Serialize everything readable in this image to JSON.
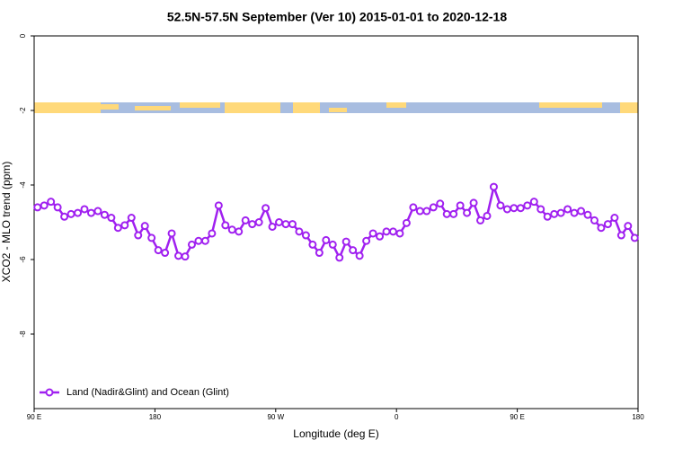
{
  "chart_data": {
    "type": "line",
    "title": "52.5N-57.5N September (Ver 10)   2015-01-01 to 2020-12-18",
    "xlabel": "Longitude (deg E)",
    "ylabel": "XCO2 - MLO trend (ppm)",
    "xlim": [
      90,
      540
    ],
    "xticks": [
      {
        "value": 90,
        "label": "90 E"
      },
      180,
      {
        "value": 270,
        "label": "90 W"
      },
      {
        "value": 360,
        "label": "0"
      },
      {
        "value": 450,
        "label": "90 E"
      },
      {
        "value": 540,
        "label": "180"
      }
    ],
    "ylim": [
      -10,
      0
    ],
    "yticks": [
      0,
      -2,
      -4,
      -6,
      -8
    ],
    "legend": "lower left",
    "x": [
      92.5,
      97.5,
      102.5,
      107.5,
      112.5,
      117.5,
      122.5,
      127.5,
      132.5,
      137.5,
      142.5,
      147.5,
      152.5,
      157.5,
      162.5,
      167.5,
      172.5,
      177.5,
      182.5,
      187.5,
      192.5,
      197.5,
      202.5,
      207.5,
      212.5,
      217.5,
      222.5,
      227.5,
      232.5,
      237.5,
      242.5,
      247.5,
      252.5,
      257.5,
      262.5,
      267.5,
      272.5,
      277.5,
      282.5,
      287.5,
      292.5,
      297.5,
      302.5,
      307.5,
      312.5,
      317.5,
      322.5,
      327.5,
      332.5,
      337.5,
      342.5,
      347.5,
      352.5,
      357.5,
      362.5,
      367.5,
      372.5,
      377.5,
      382.5,
      387.5,
      392.5,
      397.5,
      402.5,
      407.5,
      412.5,
      417.5,
      422.5,
      427.5,
      432.5,
      437.5,
      442.5,
      447.5,
      452.5,
      457.5,
      462.5,
      467.5,
      472.5,
      477.5,
      482.5,
      487.5,
      492.5,
      497.5,
      502.5,
      507.5,
      512.5,
      517.5,
      522.5,
      527.5,
      532.5,
      537.5
    ],
    "series": [
      {
        "name": "Land (Nadir&Glint) and Ocean (Glint)",
        "color": "#a020f0",
        "values": [
          -4.6,
          -4.55,
          -4.45,
          -4.6,
          -4.85,
          -4.78,
          -4.75,
          -4.65,
          -4.75,
          -4.7,
          -4.8,
          -4.88,
          -5.15,
          -5.08,
          -4.88,
          -5.35,
          -5.1,
          -5.42,
          -5.75,
          -5.82,
          -5.3,
          -5.9,
          -5.92,
          -5.6,
          -5.5,
          -5.5,
          -5.3,
          -4.55,
          -5.08,
          -5.2,
          -5.25,
          -4.95,
          -5.05,
          -5.0,
          -4.62,
          -5.12,
          -5.0,
          -5.05,
          -5.05,
          -5.25,
          -5.35,
          -5.6,
          -5.82,
          -5.48,
          -5.6,
          -5.95,
          -5.52,
          -5.75,
          -5.9,
          -5.5,
          -5.3,
          -5.38,
          -5.25,
          -5.25,
          -5.3,
          -5.02,
          -4.6,
          -4.7,
          -4.7,
          -4.6,
          -4.5,
          -4.78,
          -4.78,
          -4.55,
          -4.75,
          -4.48,
          -4.95,
          -4.83,
          -4.05,
          -4.55,
          -4.65,
          -4.62,
          -4.62,
          -4.55,
          -4.45,
          -4.65,
          -4.85,
          -4.78,
          -4.75,
          -4.65,
          -4.75,
          -4.7,
          -4.8,
          -4.95,
          -5.15,
          -5.05,
          -4.88,
          -5.35,
          -5.1,
          -5.42
        ]
      }
    ]
  }
}
